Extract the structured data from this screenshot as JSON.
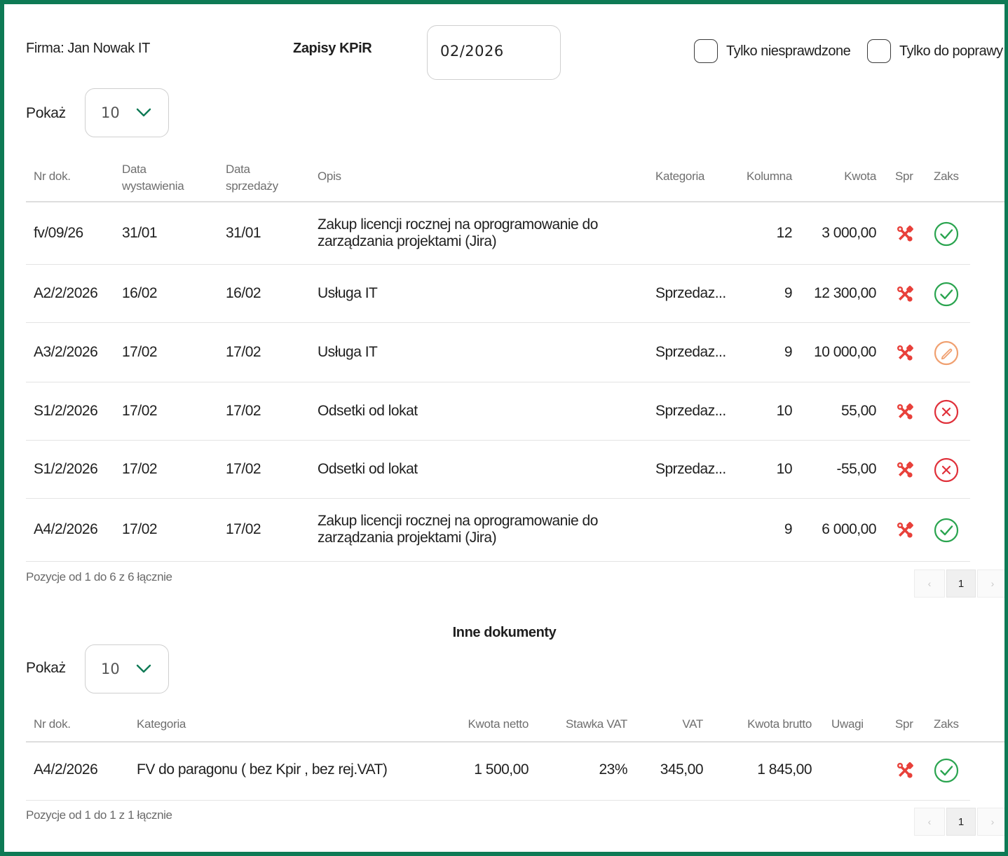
{
  "header": {
    "company": "Firma: Jan Nowak IT",
    "title": "Zapisy KPiR",
    "period": "02/2026",
    "filter_unchecked": "Tylko niesprawdzone",
    "filter_to_fix": "Tylko do poprawy"
  },
  "kpir": {
    "show_label": "Pokaż",
    "page_size": "10",
    "columns": {
      "nr": "Nr dok.",
      "issue_date_1": "Data",
      "issue_date_2": "wystawienia",
      "sale_date_1": "Data",
      "sale_date_2": "sprzedaży",
      "desc": "Opis",
      "category": "Kategoria",
      "column": "Kolumna",
      "amount": "Kwota",
      "spr": "Spr",
      "zaks": "Zaks"
    },
    "rows": [
      {
        "nr": "fv/09/26",
        "issue": "31/01",
        "sale": "31/01",
        "desc": "Zakup licencji rocznej na oprogramowanie do zarządzania projektami (Jira)",
        "category": "",
        "column": "12",
        "amount": "3 000,00",
        "spr_icon": "tools-icon",
        "zaks_icon": "check-circle-icon"
      },
      {
        "nr": "A2/2/2026",
        "issue": "16/02",
        "sale": "16/02",
        "desc": "Usługa IT",
        "category": "Sprzedaz...",
        "column": "9",
        "amount": "12 300,00",
        "spr_icon": "tools-icon",
        "zaks_icon": "check-circle-icon"
      },
      {
        "nr": "A3/2/2026",
        "issue": "17/02",
        "sale": "17/02",
        "desc": "Usługa IT",
        "category": "Sprzedaz...",
        "column": "9",
        "amount": "10 000,00",
        "spr_icon": "tools-icon",
        "zaks_icon": "pencil-circle-icon"
      },
      {
        "nr": "S1/2/2026",
        "issue": "17/02",
        "sale": "17/02",
        "desc": "Odsetki od lokat",
        "category": "Sprzedaz...",
        "column": "10",
        "amount": "55,00",
        "spr_icon": "tools-icon",
        "zaks_icon": "x-circle-icon"
      },
      {
        "nr": "S1/2/2026",
        "issue": "17/02",
        "sale": "17/02",
        "desc": "Odsetki od lokat",
        "category": "Sprzedaz...",
        "column": "10",
        "amount": "-55,00",
        "spr_icon": "tools-icon",
        "zaks_icon": "x-circle-icon"
      },
      {
        "nr": "A4/2/2026",
        "issue": "17/02",
        "sale": "17/02",
        "desc": "Zakup licencji rocznej na oprogramowanie do zarządzania projektami (Jira)",
        "category": "",
        "column": "9",
        "amount": "6 000,00",
        "spr_icon": "tools-icon",
        "zaks_icon": "check-circle-icon"
      }
    ],
    "info": "Pozycje od 1 do 6 z 6 łącznie",
    "pager": {
      "prev": "‹",
      "page": "1",
      "next": "›"
    }
  },
  "other": {
    "title": "Inne dokumenty",
    "show_label": "Pokaż",
    "page_size": "10",
    "columns": {
      "nr": "Nr dok.",
      "category": "Kategoria",
      "net": "Kwota netto",
      "vat_rate": "Stawka VAT",
      "vat": "VAT",
      "gross": "Kwota brutto",
      "notes": "Uwagi",
      "spr": "Spr",
      "zaks": "Zaks"
    },
    "rows": [
      {
        "nr": "A4/2/2026",
        "category": "FV do paragonu ( bez Kpir , bez rej.VAT)",
        "net": "1 500,00",
        "vat_rate": "23%",
        "vat": "345,00",
        "gross": "1 845,00",
        "notes": "",
        "spr_icon": "tools-icon",
        "zaks_icon": "check-circle-icon"
      }
    ],
    "info": "Pozycje od 1 do 1 z 1 łącznie",
    "pager": {
      "prev": "‹",
      "page": "1",
      "next": "›"
    }
  },
  "colors": {
    "frame": "#0e7a55",
    "ok": "#2aa44f",
    "error": "#e0303a",
    "warn": "#f0a070",
    "tools": "#e8403a"
  }
}
